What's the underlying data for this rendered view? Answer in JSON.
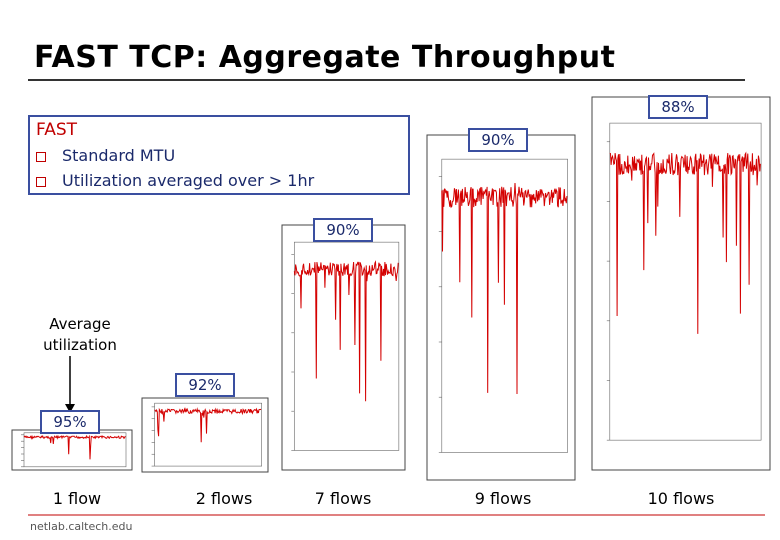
{
  "title": "FAST TCP: Aggregate Throughput",
  "box": {
    "heading": "FAST",
    "bullets": [
      "Standard MTU",
      "Utilization averaged over > 1hr"
    ]
  },
  "annotation": "Average utilization",
  "panels": [
    {
      "label": "1 flow",
      "utilization": "95%"
    },
    {
      "label": "2 flows",
      "utilization": "92%"
    },
    {
      "label": "7 flows",
      "utilization": "90%"
    },
    {
      "label": "9 flows",
      "utilization": "90%"
    },
    {
      "label": "10 flows",
      "utilization": "88%"
    }
  ],
  "footer": "netlab.caltech.edu"
}
